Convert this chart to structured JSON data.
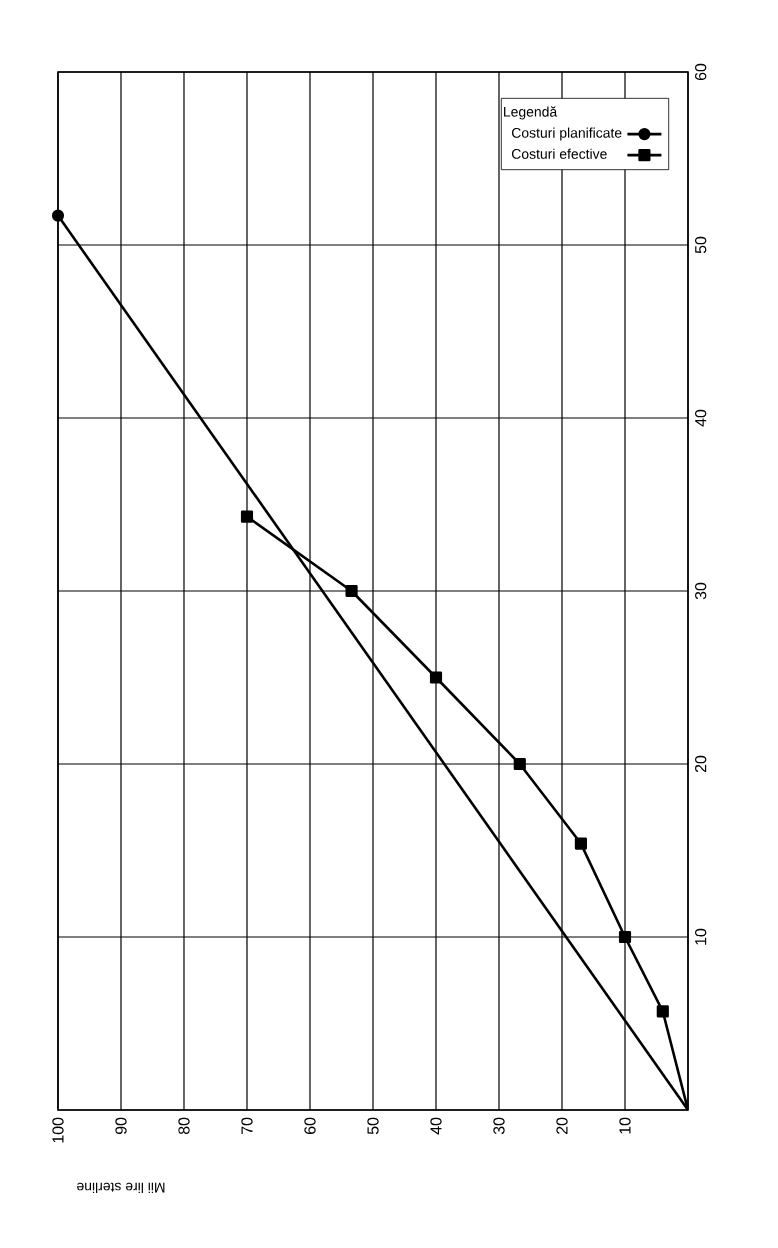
{
  "chart_data": {
    "type": "line",
    "xlabel": "Mii lire sterline",
    "legend_title": "Legendă",
    "series": [
      {
        "name": "Costuri planificate",
        "color": "#000000",
        "marker": "circle",
        "x": [
          0,
          100
        ],
        "values": [
          0,
          51.7
        ]
      },
      {
        "name": "Costuri efective",
        "color": "#000000",
        "marker": "square",
        "x": [
          0,
          4,
          10,
          17,
          26.7,
          40,
          53.4,
          70
        ],
        "values": [
          0,
          5.7,
          10,
          15.4,
          20,
          25,
          30,
          34.3
        ]
      }
    ],
    "xlim": [
      100,
      0
    ],
    "ylim": [
      0,
      60
    ],
    "xticks": [
      100,
      90,
      80,
      70,
      60,
      50,
      40,
      30,
      20,
      10,
      {
        "value": 0,
        "label": null
      }
    ],
    "yticks": [
      {
        "value": 0,
        "label": null
      },
      10,
      20,
      30,
      40,
      50,
      60
    ],
    "grid": true,
    "legend": "top right",
    "line_style": "solid"
  }
}
